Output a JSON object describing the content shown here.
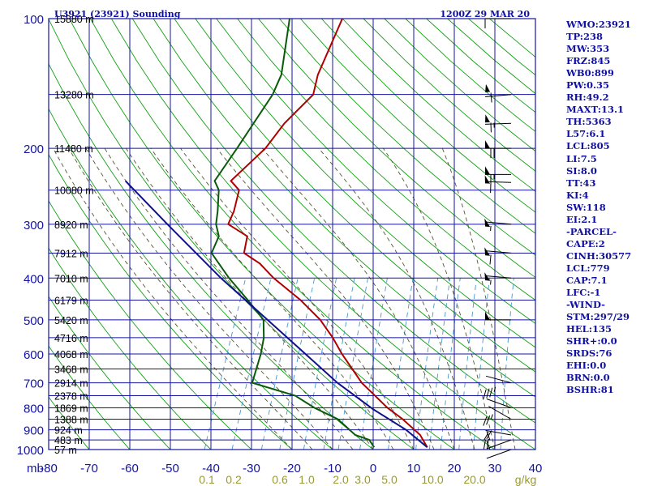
{
  "header": {
    "station": "U3921 (23921) Sounding",
    "time": "1200Z 29 MAR 20"
  },
  "stats": [
    "WMO:23921",
    "TP:238",
    "MW:353",
    "FRZ:845",
    "WB0:899",
    "PW:0.35",
    "RH:49.2",
    "MAXT:13.1",
    "TH:5363",
    "L57:6.1",
    "LCL:805",
    "LI:7.5",
    "SI:8.0",
    "TT:43",
    "KI:4",
    "SW:118",
    "EI:2.1",
    "-PARCEL-",
    "CAPE:2",
    "CINH:30577",
    "LCL:779",
    "CAP:7.1",
    "LFC:-1",
    "-WIND-",
    "STM:297/29",
    "HEL:135",
    "SHR+:0.0",
    "SRDS:76",
    "EHI:0.0",
    "BRN:0.0",
    "BSHR:81"
  ],
  "colors": {
    "grid": "#1414a0",
    "temperature": "#b00000",
    "dewpoint": "#0a5a0a",
    "parcel": "#10108c",
    "dry_adiabat": "#12a012",
    "moist_adiabat": "#555533",
    "mixing_ratio": "#4499cc",
    "wind_barb": "#000000"
  },
  "chart_data": {
    "type": "skew-t",
    "pressure_axis_unit": "mb",
    "temperature_axis_unit": "°C",
    "mixing_ratio_unit": "g/kg",
    "pressure_range": [
      100,
      1000
    ],
    "temperature_range": [
      -80,
      40
    ],
    "pressure_ticks": [
      100,
      200,
      300,
      400,
      500,
      600,
      700,
      800,
      900,
      1000
    ],
    "pressure_tick_labels": [
      "100",
      "200",
      "300",
      "400",
      "500",
      "600",
      "700",
      "800",
      "900",
      "1000"
    ],
    "temperature_ticks": [
      -80,
      -70,
      -60,
      -50,
      -40,
      -30,
      -20,
      -10,
      0,
      10,
      20,
      30,
      40
    ],
    "temperature_tick_labels": [
      "-80",
      "-70",
      "-60",
      "-50",
      "-40",
      "-30",
      "-20",
      "-10",
      "0",
      "10",
      "20",
      "30",
      "40"
    ],
    "height_levels": [
      {
        "p": 100,
        "label": "15880 m"
      },
      {
        "p": 150,
        "label": "13280 m"
      },
      {
        "p": 200,
        "label": "11480 m"
      },
      {
        "p": 250,
        "label": "10080 m"
      },
      {
        "p": 300,
        "label": "8920 m"
      },
      {
        "p": 350,
        "label": "7912 m"
      },
      {
        "p": 400,
        "label": "7010 m"
      },
      {
        "p": 450,
        "label": "6179 m"
      },
      {
        "p": 500,
        "label": "5420 m"
      },
      {
        "p": 550,
        "label": "4716 m"
      },
      {
        "p": 600,
        "label": "4068 m"
      },
      {
        "p": 650,
        "label": "3468 m"
      },
      {
        "p": 700,
        "label": "2914 m"
      },
      {
        "p": 750,
        "label": "2378 m"
      },
      {
        "p": 800,
        "label": "1869 m"
      },
      {
        "p": 850,
        "label": "1388 m"
      },
      {
        "p": 900,
        "label": "924 m"
      },
      {
        "p": 950,
        "label": "483 m"
      },
      {
        "p": 1000,
        "label": "57 m"
      }
    ],
    "mixing_ratio_labels": [
      "0.1",
      "0.2",
      "0.6",
      "1.0",
      "2.0",
      "3.0",
      "5.0",
      "10.0",
      "20.0"
    ],
    "series": [
      {
        "key": "temperature",
        "points": [
          [
            988,
            13.1
          ],
          [
            925,
            10
          ],
          [
            850,
            4
          ],
          [
            800,
            -1
          ],
          [
            700,
            -10
          ],
          [
            600,
            -18
          ],
          [
            550,
            -22
          ],
          [
            500,
            -27
          ],
          [
            450,
            -34
          ],
          [
            400,
            -43
          ],
          [
            370,
            -48
          ],
          [
            350,
            -53
          ],
          [
            320,
            -54
          ],
          [
            300,
            -60
          ],
          [
            280,
            -60
          ],
          [
            250,
            -61
          ],
          [
            238,
            -64
          ],
          [
            200,
            -59
          ],
          [
            175,
            -57
          ],
          [
            150,
            -53
          ],
          [
            135,
            -54
          ],
          [
            100,
            -54
          ]
        ]
      },
      {
        "key": "dewpoint",
        "points": [
          [
            988,
            0
          ],
          [
            950,
            -2
          ],
          [
            925,
            -6
          ],
          [
            850,
            -12
          ],
          [
            800,
            -19
          ],
          [
            750,
            -25
          ],
          [
            700,
            -37
          ],
          [
            600,
            -38
          ],
          [
            550,
            -39
          ],
          [
            500,
            -41
          ],
          [
            450,
            -47
          ],
          [
            400,
            -54
          ],
          [
            350,
            -61
          ],
          [
            320,
            -61
          ],
          [
            300,
            -63
          ],
          [
            280,
            -64
          ],
          [
            250,
            -66
          ],
          [
            238,
            -68
          ],
          [
            200,
            -66
          ],
          [
            150,
            -63
          ],
          [
            135,
            -63
          ],
          [
            100,
            -67
          ]
        ]
      },
      {
        "key": "parcel",
        "points": [
          [
            988,
            13.1
          ],
          [
            900,
            6
          ],
          [
            805,
            -4.5
          ],
          [
            800,
            -5
          ],
          [
            700,
            -16
          ],
          [
            600,
            -27
          ],
          [
            500,
            -40
          ],
          [
            400,
            -56
          ],
          [
            300,
            -75
          ],
          [
            238,
            -90
          ]
        ]
      }
    ],
    "wind_barbs": [
      {
        "p": 100,
        "dir": 270,
        "kt": 10
      },
      {
        "p": 150,
        "dir": 265,
        "kt": 60
      },
      {
        "p": 175,
        "dir": 268,
        "kt": 65
      },
      {
        "p": 200,
        "dir": 270,
        "kt": 70
      },
      {
        "p": 230,
        "dir": 270,
        "kt": 65
      },
      {
        "p": 240,
        "dir": 272,
        "kt": 60
      },
      {
        "p": 300,
        "dir": 275,
        "kt": 55
      },
      {
        "p": 350,
        "dir": 275,
        "kt": 60
      },
      {
        "p": 400,
        "dir": 275,
        "kt": 55
      },
      {
        "p": 500,
        "dir": 270,
        "kt": 50
      },
      {
        "p": 700,
        "dir": 285,
        "kt": 35
      },
      {
        "p": 800,
        "dir": 290,
        "kt": 25
      },
      {
        "p": 850,
        "dir": 300,
        "kt": 20
      },
      {
        "p": 925,
        "dir": 280,
        "kt": 20
      },
      {
        "p": 950,
        "dir": 250,
        "kt": 10
      },
      {
        "p": 1000,
        "dir": 250,
        "kt": 10
      }
    ]
  }
}
